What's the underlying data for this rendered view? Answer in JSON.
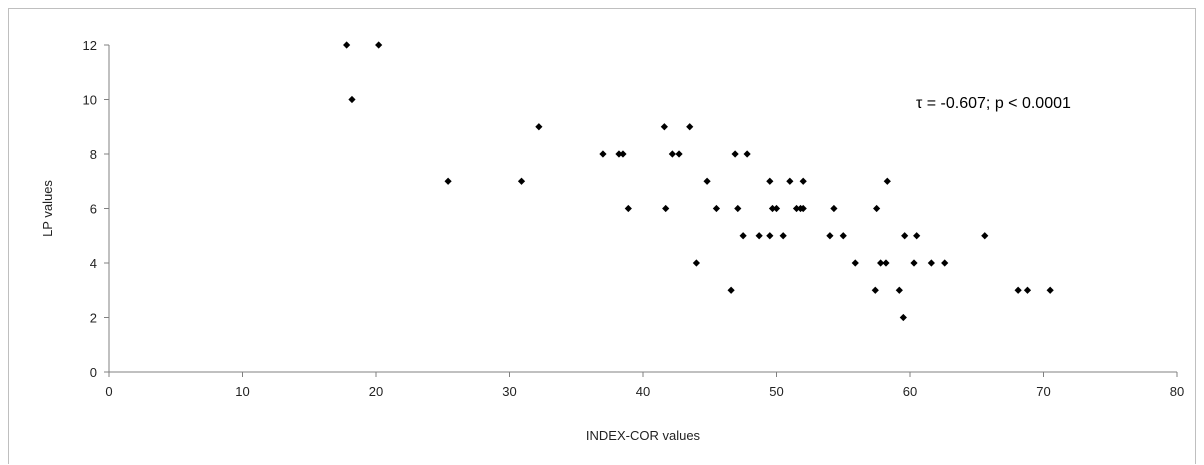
{
  "chart_data": {
    "type": "scatter",
    "title": "",
    "xlabel": "INDEX-COR values",
    "ylabel": "LP values",
    "xlim": [
      0,
      80
    ],
    "ylim": [
      0,
      12
    ],
    "x_ticks": [
      0,
      10,
      20,
      30,
      40,
      50,
      60,
      70,
      80
    ],
    "y_ticks": [
      0,
      2,
      4,
      6,
      8,
      10,
      12
    ],
    "grid": false,
    "legend": "none",
    "marker": "diamond",
    "marker_color": "#000000",
    "annotation": "τ = -0.607; p < 0.0001",
    "series": [
      {
        "points": [
          [
            17.8,
            12
          ],
          [
            20.2,
            12
          ],
          [
            18.2,
            10
          ],
          [
            25.4,
            7
          ],
          [
            30.9,
            7
          ],
          [
            32.2,
            9
          ],
          [
            37.0,
            8
          ],
          [
            38.2,
            8
          ],
          [
            38.5,
            8
          ],
          [
            38.9,
            6
          ],
          [
            41.6,
            9
          ],
          [
            41.7,
            6
          ],
          [
            42.2,
            8
          ],
          [
            42.7,
            8
          ],
          [
            43.5,
            9
          ],
          [
            44.0,
            4
          ],
          [
            44.8,
            7
          ],
          [
            45.5,
            6
          ],
          [
            46.6,
            3
          ],
          [
            46.9,
            8
          ],
          [
            47.1,
            6
          ],
          [
            47.5,
            5
          ],
          [
            47.8,
            8
          ],
          [
            48.7,
            5
          ],
          [
            49.5,
            7
          ],
          [
            49.5,
            5
          ],
          [
            49.7,
            6
          ],
          [
            50.0,
            6
          ],
          [
            50.5,
            5
          ],
          [
            51.0,
            7
          ],
          [
            51.5,
            6
          ],
          [
            51.8,
            6
          ],
          [
            52.0,
            7
          ],
          [
            52.0,
            6
          ],
          [
            54.0,
            5
          ],
          [
            54.3,
            6
          ],
          [
            55.0,
            5
          ],
          [
            55.9,
            4
          ],
          [
            57.4,
            3
          ],
          [
            57.5,
            6
          ],
          [
            57.8,
            4
          ],
          [
            58.2,
            4
          ],
          [
            58.3,
            7
          ],
          [
            59.2,
            3
          ],
          [
            59.5,
            2
          ],
          [
            59.6,
            5
          ],
          [
            60.3,
            4
          ],
          [
            60.5,
            5
          ],
          [
            61.6,
            4
          ],
          [
            62.6,
            4
          ],
          [
            65.6,
            5
          ],
          [
            68.1,
            3
          ],
          [
            68.8,
            3
          ],
          [
            70.5,
            3
          ]
        ]
      }
    ]
  }
}
